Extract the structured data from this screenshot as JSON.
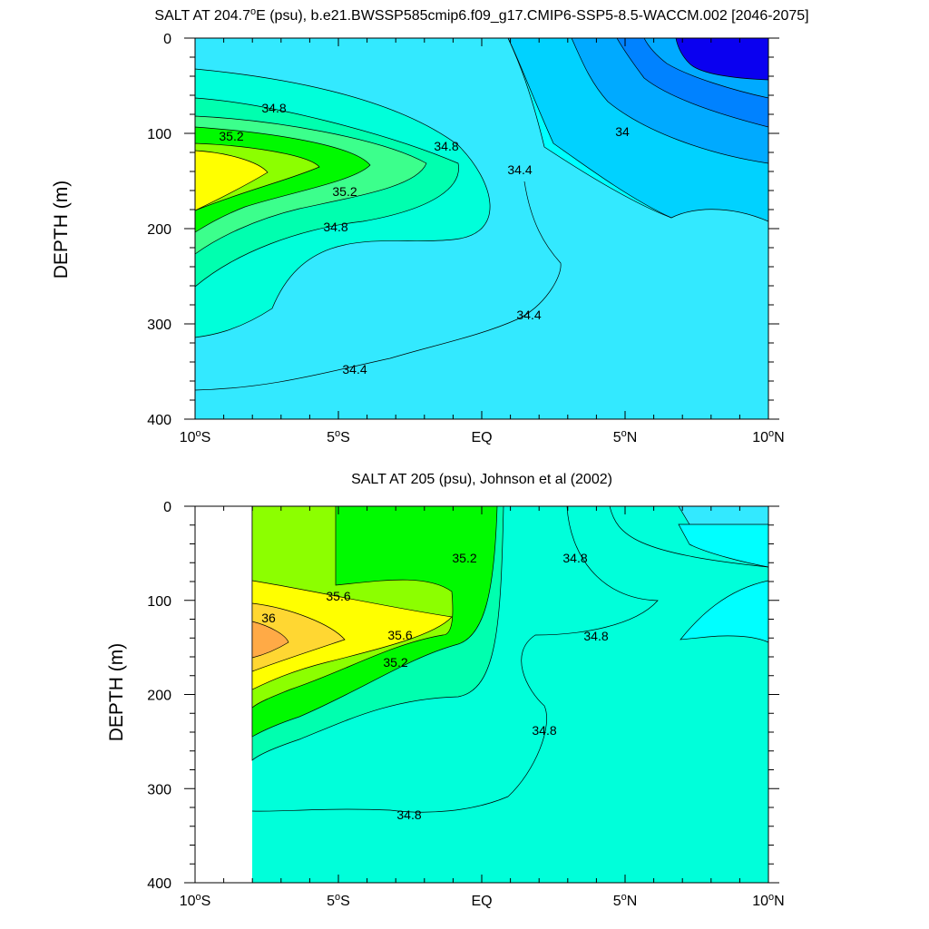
{
  "colors": {
    "blue_dark": "#0a00f0",
    "blue_1": "#0082ff",
    "blue_2": "#00aaff",
    "blue_3": "#00d2ff",
    "cyan_1": "#33e9ff",
    "cyan_2": "#00ffff",
    "aqua": "#00ffda",
    "seafoam": "#00ffaf",
    "green_lite": "#3cff8c",
    "green": "#00fa00",
    "lime": "#8cff00",
    "yellow": "#ffff00",
    "gold": "#ffd732",
    "orange": "#ffaa46"
  },
  "chart_data": [
    {
      "type": "contour",
      "title": "SALT AT 204.7°E (psu), b.e21.BWSSP585cmip6.f09_g17.CMIP6-SSP5-8.5-WACCM.002 [2046-2075]",
      "title_parts": {
        "a": "SALT AT 204.7",
        "sup": "o",
        "b": "E (psu), b.e21.BWSSP585cmip6.f09_g17.CMIP6-SSP5-8.5-WACCM.002 [2046-2075]"
      },
      "xlabel": "",
      "ylabel": "DEPTH (m)",
      "xlim": [
        -10,
        10
      ],
      "ylim": [
        400,
        0
      ],
      "x_ticks": [
        {
          "value": -10,
          "num": "10",
          "sup": "o",
          "hem": "S"
        },
        {
          "value": -5,
          "num": "5",
          "sup": "o",
          "hem": "S"
        },
        {
          "value": 0,
          "num": "EQ",
          "sup": "",
          "hem": ""
        },
        {
          "value": 5,
          "num": "5",
          "sup": "o",
          "hem": "N"
        },
        {
          "value": 10,
          "num": "10",
          "sup": "o",
          "hem": "N"
        }
      ],
      "y_ticks": [
        0,
        100,
        200,
        300,
        400
      ],
      "contour_labels": [
        "34.8",
        "35.2",
        "34.8",
        "35.2",
        "34.8",
        "34.4",
        "34",
        "34.4",
        "34.4"
      ]
    },
    {
      "type": "contour",
      "title": "SALT AT 205 (psu), Johnson et al (2002)",
      "xlabel": "",
      "ylabel": "DEPTH (m)",
      "xlim": [
        -10,
        10
      ],
      "ylim": [
        400,
        0
      ],
      "data_x_range": [
        -8,
        10
      ],
      "x_ticks": [
        {
          "value": -10,
          "num": "10",
          "sup": "o",
          "hem": "S"
        },
        {
          "value": -5,
          "num": "5",
          "sup": "o",
          "hem": "S"
        },
        {
          "value": 0,
          "num": "EQ",
          "sup": "",
          "hem": ""
        },
        {
          "value": 5,
          "num": "5",
          "sup": "o",
          "hem": "N"
        },
        {
          "value": 10,
          "num": "10",
          "sup": "o",
          "hem": "N"
        }
      ],
      "y_ticks": [
        0,
        100,
        200,
        300,
        400
      ],
      "contour_labels": [
        "35.6",
        "36",
        "35.6",
        "35.2",
        "35.2",
        "34.8",
        "34.8",
        "34.8",
        "34.8"
      ]
    }
  ]
}
